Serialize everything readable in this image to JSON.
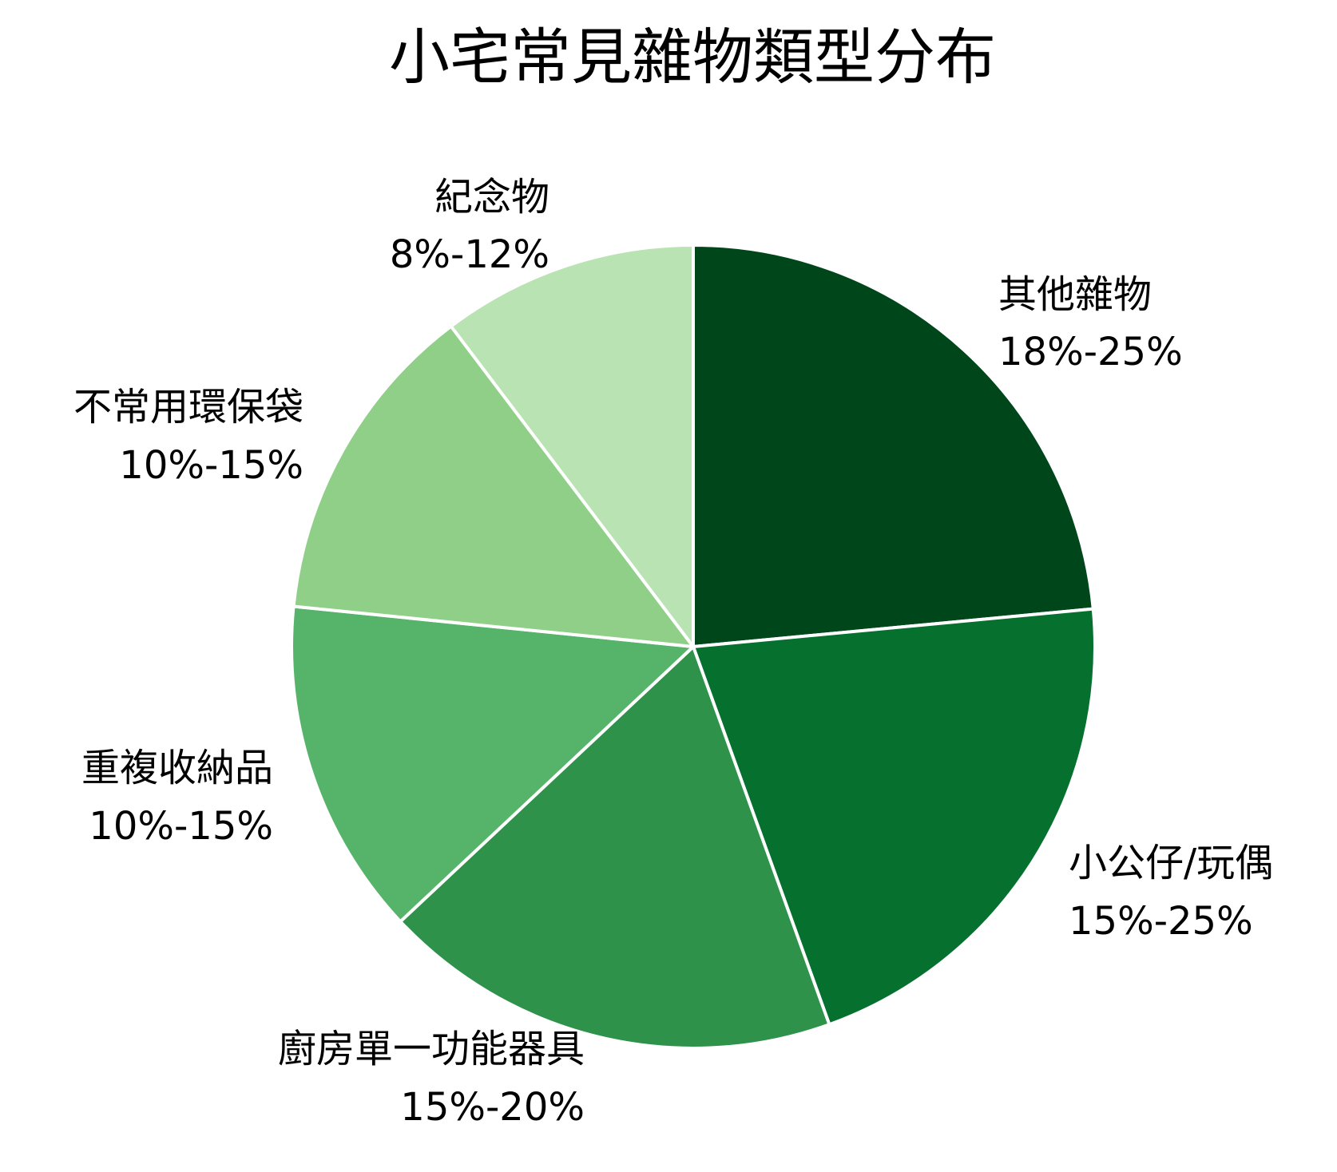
{
  "chart_data": {
    "type": "pie",
    "title": "小宅常見雜物類型分布",
    "start_angle_deg": 0,
    "direction": "clockwise",
    "slices": [
      {
        "label": "其他雜物",
        "range_text": "18%-25%",
        "value": 23.5,
        "color": "#00461b"
      },
      {
        "label": "小公仔/玩偶",
        "range_text": "15%-25%",
        "value": 21.0,
        "color": "#06712f"
      },
      {
        "label": "廚房單一功能器具",
        "range_text": "15%-20%",
        "value": 18.5,
        "color": "#2e924b"
      },
      {
        "label": "重複收納品",
        "range_text": "10%-15%",
        "value": 13.6,
        "color": "#56b46a"
      },
      {
        "label": "不常用環保袋",
        "range_text": "10%-15%",
        "value": 13.1,
        "color": "#8fcf88"
      },
      {
        "label": "紀念物",
        "range_text": "8%-12%",
        "value": 10.3,
        "color": "#b9e3b3"
      }
    ]
  }
}
